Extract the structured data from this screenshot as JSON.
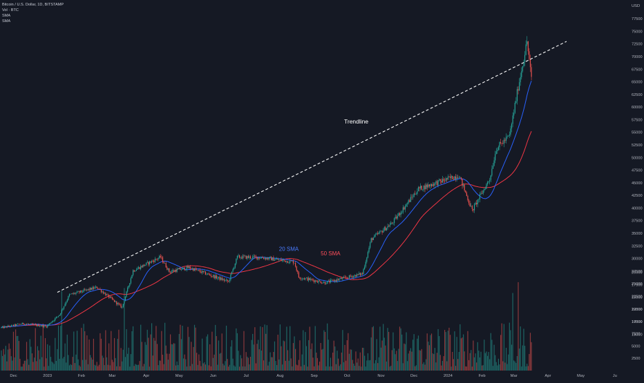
{
  "header": {
    "title": "Bitcoin / U.S. Dollar, 1D, BITSTAMP",
    "vol": "Vol · BTC",
    "sma1": "SMA",
    "sma2": "SMA"
  },
  "currency_label": "USD",
  "colors": {
    "background": "#151924",
    "up": "#26a69a",
    "down": "#ef5350",
    "sma20": "#2962ff",
    "sma50": "#f23645",
    "trendline": "#ffffff",
    "axis_text": "#b2b5be"
  },
  "chart_data": {
    "type": "candlestick",
    "x_ticks": [
      "Dec",
      "2023",
      "Feb",
      "Mar",
      "Apr",
      "May",
      "Jun",
      "Jul",
      "Aug",
      "Sep",
      "Oct",
      "Nov",
      "Dec",
      "2024",
      "Feb",
      "Mar",
      "Apr",
      "May",
      "Ju"
    ],
    "y_ticks": [
      15000,
      17500,
      20000,
      22500,
      25000,
      27500,
      30000,
      32500,
      35000,
      37500,
      40000,
      42500,
      45000,
      47500,
      50000,
      52500,
      55000,
      57500,
      60000,
      62500,
      65000,
      67500,
      70000,
      72500,
      75000,
      77500
    ],
    "ylim": [
      14500,
      78200
    ],
    "volume_ticks": [
      2500,
      5000,
      7500,
      10000,
      12500,
      15000,
      17500,
      20000
    ],
    "volume_lim": [
      0,
      21500
    ],
    "price_path": {
      "date_range": [
        "2022-11-20",
        "2024-03-17"
      ],
      "points": [
        [
          "2022-11-20",
          16300
        ],
        [
          "2022-12-10",
          17100
        ],
        [
          "2022-12-31",
          16550
        ],
        [
          "2023-01-12",
          18900
        ],
        [
          "2023-01-21",
          22800
        ],
        [
          "2023-02-15",
          24300
        ],
        [
          "2023-03-10",
          20300
        ],
        [
          "2023-03-20",
          27600
        ],
        [
          "2023-04-14",
          30300
        ],
        [
          "2023-04-22",
          27400
        ],
        [
          "2023-05-10",
          28200
        ],
        [
          "2023-06-15",
          25400
        ],
        [
          "2023-06-23",
          30300
        ],
        [
          "2023-07-15",
          30200
        ],
        [
          "2023-08-14",
          29300
        ],
        [
          "2023-08-18",
          26300
        ],
        [
          "2023-09-11",
          25200
        ],
        [
          "2023-10-15",
          27000
        ],
        [
          "2023-10-23",
          33800
        ],
        [
          "2023-11-11",
          37000
        ],
        [
          "2023-12-05",
          43800
        ],
        [
          "2024-01-11",
          46500
        ],
        [
          "2024-01-23",
          39500
        ],
        [
          "2024-02-08",
          45800
        ],
        [
          "2024-02-14",
          51800
        ],
        [
          "2024-02-26",
          54300
        ],
        [
          "2024-03-05",
          64000
        ],
        [
          "2024-03-13",
          73000
        ],
        [
          "2024-03-17",
          65500
        ]
      ]
    },
    "series": [
      {
        "name": "20 SMA",
        "kind": "sma",
        "period": 20
      },
      {
        "name": "50 SMA",
        "kind": "sma",
        "period": 50
      }
    ],
    "annotations": [
      {
        "text": "Trendline",
        "kind": "trendline",
        "from": [
          "2023-01-10",
          23300
        ],
        "to": [
          "2024-04-18",
          73000
        ]
      },
      {
        "text": "20 SMA",
        "date": "2023-07-31",
        "value": 31500
      },
      {
        "text": "50 SMA",
        "date": "2023-09-07",
        "value": 30600
      }
    ],
    "volume_highlights": [
      {
        "date": "2023-01-14",
        "value": 16200
      },
      {
        "date": "2023-03-12",
        "value": 16800
      },
      {
        "date": "2024-03-05",
        "value": 18000
      },
      {
        "date": "2024-02-29",
        "value": 15800
      }
    ],
    "grid": false,
    "legend": "top-left"
  }
}
